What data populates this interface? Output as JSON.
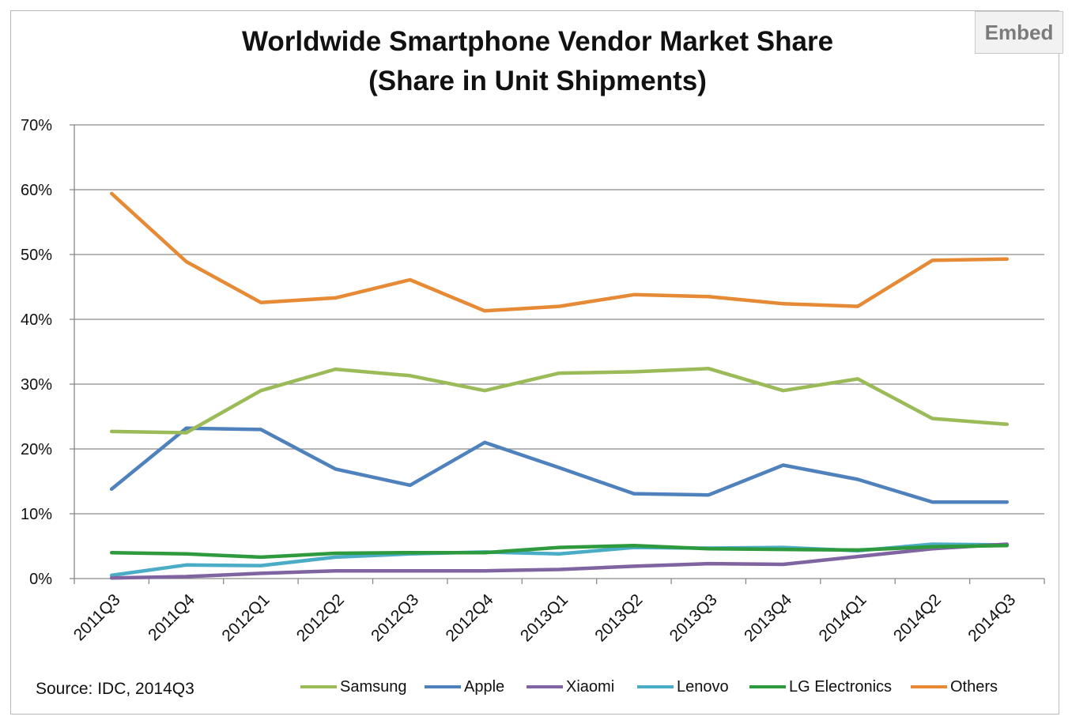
{
  "embed_label": "Embed",
  "title_line1": "Worldwide Smartphone Vendor Market Share",
  "title_line2": "(Share in Unit Shipments)",
  "source": "Source: IDC, 2014Q3",
  "colors": {
    "Samsung": "#9bbb59",
    "Apple": "#4f81bd",
    "Xiaomi": "#8064a2",
    "Lenovo": "#4bacc6",
    "LG Electronics": "#2e9a3e",
    "Others": "#e68a35",
    "grid": "#8a8a8a"
  },
  "chart_data": {
    "type": "line",
    "title": "Worldwide Smartphone Vendor Market Share (Share in Unit Shipments)",
    "xlabel": "",
    "ylabel": "",
    "categories": [
      "2011Q3",
      "2011Q4",
      "2012Q1",
      "2012Q2",
      "2012Q3",
      "2012Q4",
      "2013Q1",
      "2013Q2",
      "2013Q3",
      "2013Q4",
      "2014Q1",
      "2014Q2",
      "2014Q3"
    ],
    "y_ticks": [
      "0%",
      "10%",
      "20%",
      "30%",
      "40%",
      "50%",
      "60%",
      "70%"
    ],
    "ylim": [
      0,
      70
    ],
    "grid": true,
    "legend_position": "bottom",
    "series": [
      {
        "name": "Samsung",
        "values": [
          22.7,
          22.5,
          29.0,
          32.3,
          31.3,
          29.0,
          31.7,
          31.9,
          32.4,
          29.0,
          30.8,
          24.7,
          23.8
        ]
      },
      {
        "name": "Apple",
        "values": [
          13.8,
          23.2,
          23.0,
          16.9,
          14.4,
          21.0,
          17.1,
          13.1,
          12.9,
          17.5,
          15.3,
          11.8,
          11.8
        ]
      },
      {
        "name": "Xiaomi",
        "values": [
          0.1,
          0.3,
          0.8,
          1.2,
          1.2,
          1.2,
          1.4,
          1.9,
          2.3,
          2.2,
          3.4,
          4.6,
          5.3
        ]
      },
      {
        "name": "Lenovo",
        "values": [
          0.5,
          2.1,
          2.0,
          3.3,
          3.8,
          4.1,
          3.8,
          4.8,
          4.7,
          4.8,
          4.3,
          5.3,
          5.2
        ]
      },
      {
        "name": "LG Electronics",
        "values": [
          4.0,
          3.8,
          3.3,
          3.9,
          4.0,
          4.0,
          4.8,
          5.1,
          4.6,
          4.5,
          4.4,
          4.9,
          5.1
        ]
      },
      {
        "name": "Others",
        "values": [
          59.4,
          48.9,
          42.6,
          43.3,
          46.1,
          41.3,
          42.0,
          43.8,
          43.5,
          42.4,
          42.0,
          49.1,
          49.3
        ]
      }
    ]
  }
}
